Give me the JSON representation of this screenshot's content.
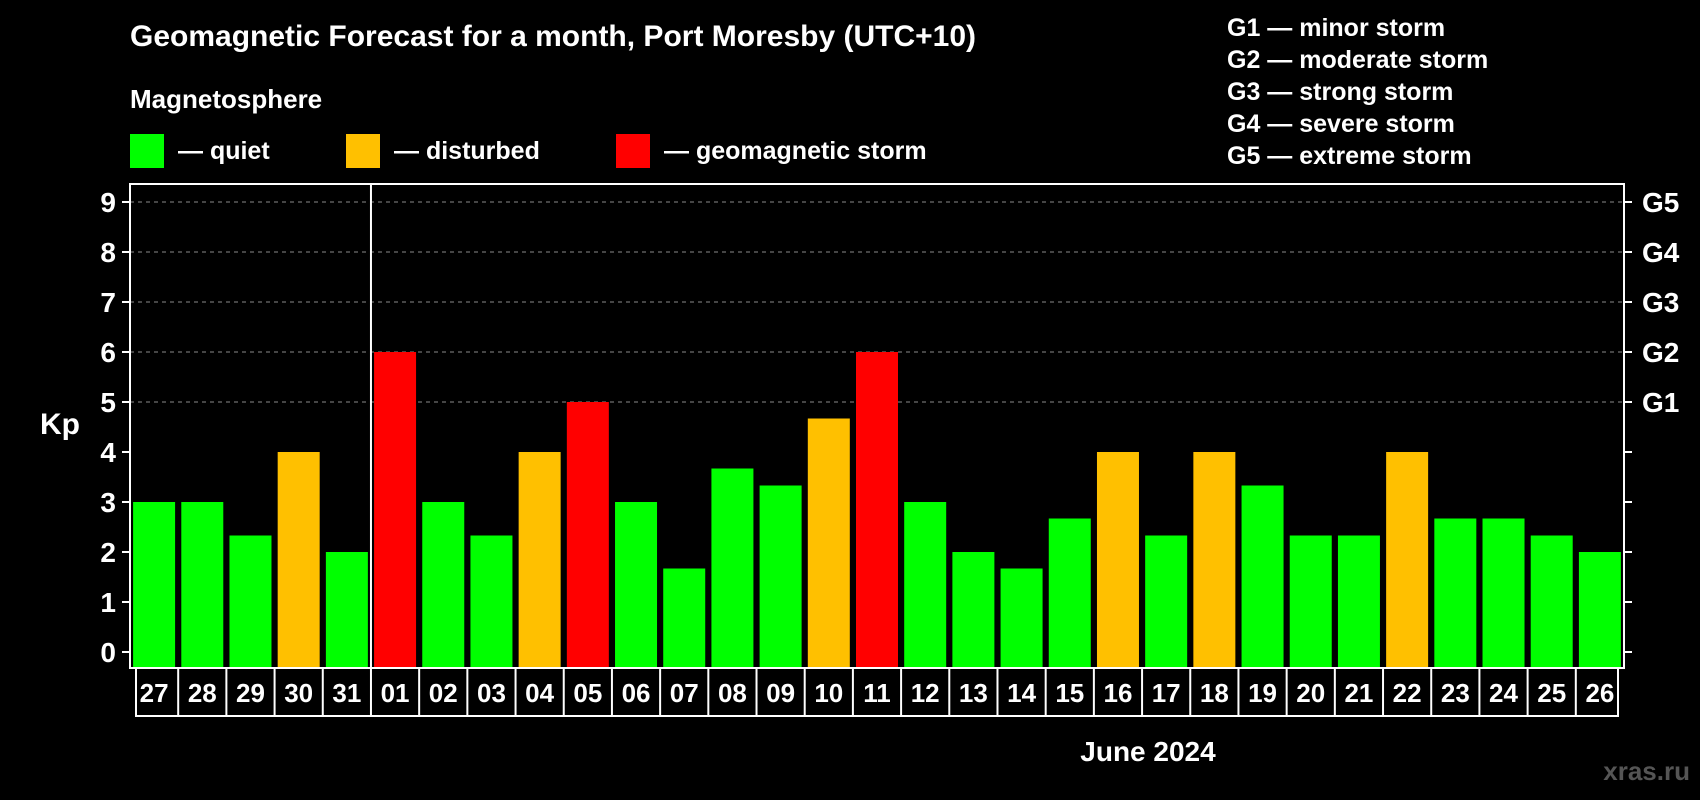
{
  "title": "Geomagnetic Forecast for a month, Port Moresby (UTC+10)",
  "subtitle": "Magnetosphere",
  "legend": [
    {
      "label": "— quiet",
      "color": "#00ff00"
    },
    {
      "label": "— disturbed",
      "color": "#ffc000"
    },
    {
      "label": "— geomagnetic storm",
      "color": "#ff0000"
    }
  ],
  "g_scale": [
    "G1 — minor storm",
    "G2 — moderate storm",
    "G3 — strong storm",
    "G4 — severe storm",
    "G5 — extreme storm"
  ],
  "watermark": "xras.ru",
  "chart_data": {
    "type": "bar",
    "title": "Geomagnetic Forecast for a month, Port Moresby (UTC+10)",
    "xlabel": "June 2024",
    "ylabel": "Kp",
    "ylim": [
      0,
      9
    ],
    "yticks": [
      0,
      1,
      2,
      3,
      4,
      5,
      6,
      7,
      8,
      9
    ],
    "right_axis_labels": [
      {
        "kp": 5,
        "label": "G1"
      },
      {
        "kp": 6,
        "label": "G2"
      },
      {
        "kp": 7,
        "label": "G3"
      },
      {
        "kp": 8,
        "label": "G4"
      },
      {
        "kp": 9,
        "label": "G5"
      }
    ],
    "month_divider_after_index": 4,
    "categories": [
      "27",
      "28",
      "29",
      "30",
      "31",
      "01",
      "02",
      "03",
      "04",
      "05",
      "06",
      "07",
      "08",
      "09",
      "10",
      "11",
      "12",
      "13",
      "14",
      "15",
      "16",
      "17",
      "18",
      "19",
      "20",
      "21",
      "22",
      "23",
      "24",
      "25",
      "26"
    ],
    "values": [
      3,
      3,
      2.33,
      4,
      2,
      6,
      3,
      2.33,
      4,
      5,
      3,
      1.67,
      3.67,
      3.33,
      4.67,
      6,
      3,
      2,
      1.67,
      2.67,
      4,
      2.33,
      4,
      3.33,
      2.33,
      2.33,
      4,
      2.67,
      2.67,
      2.33,
      2
    ],
    "colors": {
      "quiet": "#00ff00",
      "disturbed": "#ffc000",
      "storm": "#ff0000"
    },
    "grid": "dashed at integer Kp 5-9"
  }
}
